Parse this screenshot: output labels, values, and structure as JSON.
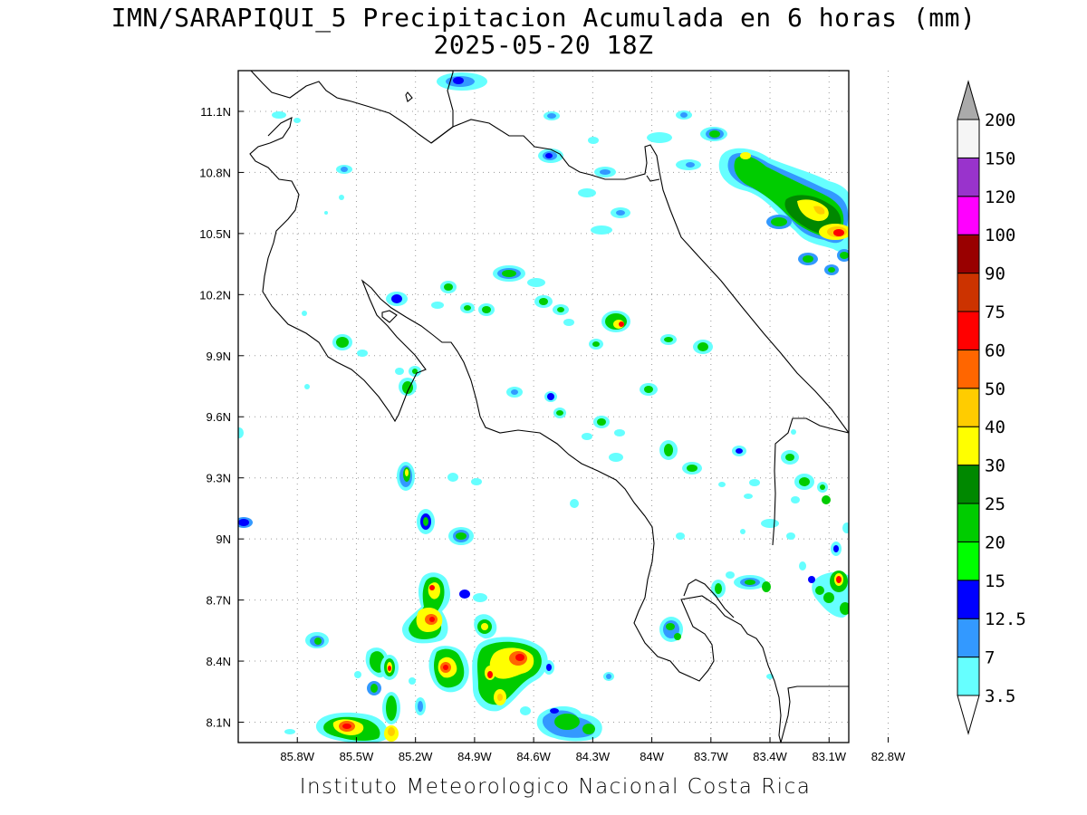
{
  "title": {
    "line1": "IMN/SARAPIQUI_5 Precipitacion Acumulada en 6 horas (mm)",
    "line2": "2025-05-20 18Z"
  },
  "footer": "Instituto Meteorologico Nacional Costa Rica",
  "map": {
    "lon_range": [
      -86.1,
      -83.0
    ],
    "lat_range": [
      8.0,
      11.3
    ],
    "lon_ticks": [
      "85.8W",
      "85.5W",
      "85.2W",
      "84.9W",
      "84.6W",
      "84.3W",
      "84W",
      "83.7W",
      "83.4W",
      "83.1W",
      "82.8W"
    ],
    "lat_ticks": [
      "11.1N",
      "10.8N",
      "10.5N",
      "10.2N",
      "9.9N",
      "9.6N",
      "9.3N",
      "9N",
      "8.7N",
      "8.4N",
      "8.1N"
    ],
    "grid": "dotted"
  },
  "colorbar": {
    "labels": [
      "3.5",
      "7",
      "12.5",
      "15",
      "20",
      "25",
      "30",
      "40",
      "50",
      "60",
      "75",
      "90",
      "100",
      "120",
      "150",
      "200"
    ],
    "colors": [
      "#66ffff",
      "#3399ff",
      "#0000ff",
      "#00ff00",
      "#00cc00",
      "#008800",
      "#ffff00",
      "#ffcc00",
      "#ff6600",
      "#ff0000",
      "#cc3300",
      "#990000",
      "#ff00ff",
      "#9933cc",
      "#f5f5f5",
      "#aaaaaa"
    ]
  }
}
